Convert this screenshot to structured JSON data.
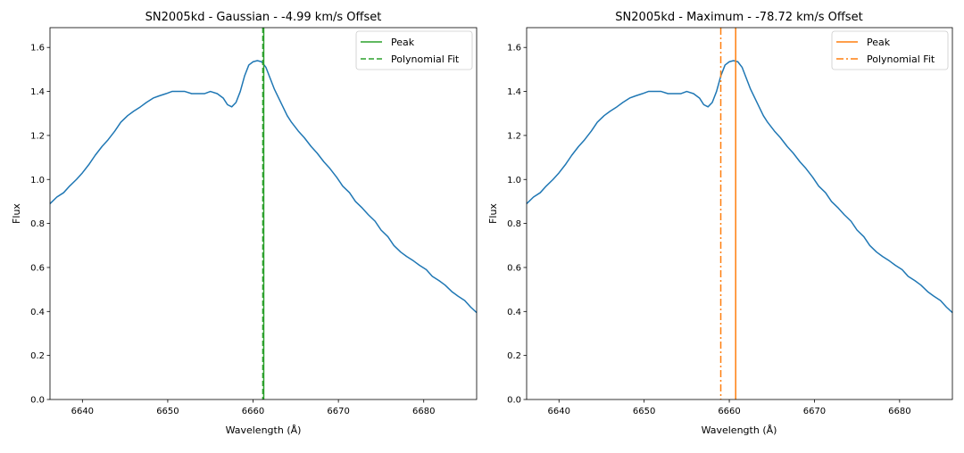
{
  "chart_data": [
    {
      "type": "line",
      "title": "SN2005kd - Gaussian - -4.99 km/s Offset",
      "xlabel": "Wavelength (Å)",
      "ylabel": "Flux",
      "xlim": [
        6636.2,
        6686.2
      ],
      "ylim": [
        0.0,
        1.69
      ],
      "xticks": [
        6640,
        6650,
        6660,
        6670,
        6680
      ],
      "yticks": [
        0.0,
        0.2,
        0.4,
        0.6,
        0.8,
        1.0,
        1.2,
        1.4,
        1.6
      ],
      "grid": false,
      "legend_position": "top-right",
      "series": [
        {
          "color": "#1f77b4",
          "x": [
            6636.2,
            6637.0,
            6637.8,
            6638.5,
            6639.3,
            6640.0,
            6640.8,
            6641.5,
            6642.3,
            6643.0,
            6643.8,
            6644.5,
            6645.3,
            6646.0,
            6646.8,
            6647.5,
            6648.3,
            6649.0,
            6649.8,
            6650.5,
            6651.3,
            6652.0,
            6652.8,
            6653.5,
            6654.3,
            6655.0,
            6655.8,
            6656.5,
            6657.0,
            6657.5,
            6658.0,
            6658.5,
            6659.0,
            6659.5,
            6660.0,
            6660.5,
            6661.0,
            6661.5,
            6662.0,
            6662.5,
            6663.0,
            6663.5,
            6664.0,
            6664.5,
            6665.3,
            6666.0,
            6666.8,
            6667.5,
            6668.3,
            6669.0,
            6669.8,
            6670.5,
            6671.3,
            6672.0,
            6672.8,
            6673.5,
            6674.3,
            6675.0,
            6675.8,
            6676.5,
            6677.3,
            6678.0,
            6678.8,
            6679.5,
            6680.3,
            6681.0,
            6681.8,
            6682.5,
            6683.3,
            6684.0,
            6684.8,
            6685.5,
            6686.2
          ],
          "y": [
            0.89,
            0.92,
            0.94,
            0.97,
            1.0,
            1.03,
            1.07,
            1.11,
            1.15,
            1.18,
            1.22,
            1.26,
            1.29,
            1.31,
            1.33,
            1.35,
            1.37,
            1.38,
            1.39,
            1.4,
            1.4,
            1.4,
            1.39,
            1.39,
            1.39,
            1.4,
            1.39,
            1.37,
            1.34,
            1.33,
            1.35,
            1.4,
            1.47,
            1.52,
            1.535,
            1.54,
            1.535,
            1.51,
            1.46,
            1.41,
            1.37,
            1.33,
            1.29,
            1.26,
            1.22,
            1.19,
            1.15,
            1.12,
            1.08,
            1.05,
            1.01,
            0.97,
            0.94,
            0.9,
            0.87,
            0.84,
            0.81,
            0.77,
            0.74,
            0.7,
            0.67,
            0.65,
            0.63,
            0.61,
            0.59,
            0.56,
            0.54,
            0.52,
            0.49,
            0.47,
            0.45,
            0.42,
            0.395
          ]
        }
      ],
      "vlines": [
        {
          "name": "Peak",
          "x": 6661.25,
          "color": "#2ca02c",
          "style": "solid"
        },
        {
          "name": "Polynomial Fit",
          "x": 6661.14,
          "color": "#2ca02c",
          "style": "dashed"
        }
      ]
    },
    {
      "type": "line",
      "title": "SN2005kd - Maximum - -78.72 km/s Offset",
      "xlabel": "Wavelength (Å)",
      "ylabel": "Flux",
      "xlim": [
        6636.2,
        6686.2
      ],
      "ylim": [
        0.0,
        1.69
      ],
      "xticks": [
        6640,
        6650,
        6660,
        6670,
        6680
      ],
      "yticks": [
        0.0,
        0.2,
        0.4,
        0.6,
        0.8,
        1.0,
        1.2,
        1.4,
        1.6
      ],
      "grid": false,
      "legend_position": "top-right",
      "series": [
        {
          "color": "#1f77b4",
          "x": [
            6636.2,
            6637.0,
            6637.8,
            6638.5,
            6639.3,
            6640.0,
            6640.8,
            6641.5,
            6642.3,
            6643.0,
            6643.8,
            6644.5,
            6645.3,
            6646.0,
            6646.8,
            6647.5,
            6648.3,
            6649.0,
            6649.8,
            6650.5,
            6651.3,
            6652.0,
            6652.8,
            6653.5,
            6654.3,
            6655.0,
            6655.8,
            6656.5,
            6657.0,
            6657.5,
            6658.0,
            6658.5,
            6659.0,
            6659.5,
            6660.0,
            6660.5,
            6661.0,
            6661.5,
            6662.0,
            6662.5,
            6663.0,
            6663.5,
            6664.0,
            6664.5,
            6665.3,
            6666.0,
            6666.8,
            6667.5,
            6668.3,
            6669.0,
            6669.8,
            6670.5,
            6671.3,
            6672.0,
            6672.8,
            6673.5,
            6674.3,
            6675.0,
            6675.8,
            6676.5,
            6677.3,
            6678.0,
            6678.8,
            6679.5,
            6680.3,
            6681.0,
            6681.8,
            6682.5,
            6683.3,
            6684.0,
            6684.8,
            6685.5,
            6686.2
          ],
          "y": [
            0.89,
            0.92,
            0.94,
            0.97,
            1.0,
            1.03,
            1.07,
            1.11,
            1.15,
            1.18,
            1.22,
            1.26,
            1.29,
            1.31,
            1.33,
            1.35,
            1.37,
            1.38,
            1.39,
            1.4,
            1.4,
            1.4,
            1.39,
            1.39,
            1.39,
            1.4,
            1.39,
            1.37,
            1.34,
            1.33,
            1.35,
            1.4,
            1.47,
            1.52,
            1.535,
            1.54,
            1.535,
            1.51,
            1.46,
            1.41,
            1.37,
            1.33,
            1.29,
            1.26,
            1.22,
            1.19,
            1.15,
            1.12,
            1.08,
            1.05,
            1.01,
            0.97,
            0.94,
            0.9,
            0.87,
            0.84,
            0.81,
            0.77,
            0.74,
            0.7,
            0.67,
            0.65,
            0.63,
            0.61,
            0.59,
            0.56,
            0.54,
            0.52,
            0.49,
            0.47,
            0.45,
            0.42,
            0.395
          ]
        }
      ],
      "vlines": [
        {
          "name": "Peak",
          "x": 6660.75,
          "color": "#ff7f0e",
          "style": "solid"
        },
        {
          "name": "Polynomial Fit",
          "x": 6659.0,
          "color": "#ff7f0e",
          "style": "dashdot"
        }
      ]
    }
  ]
}
